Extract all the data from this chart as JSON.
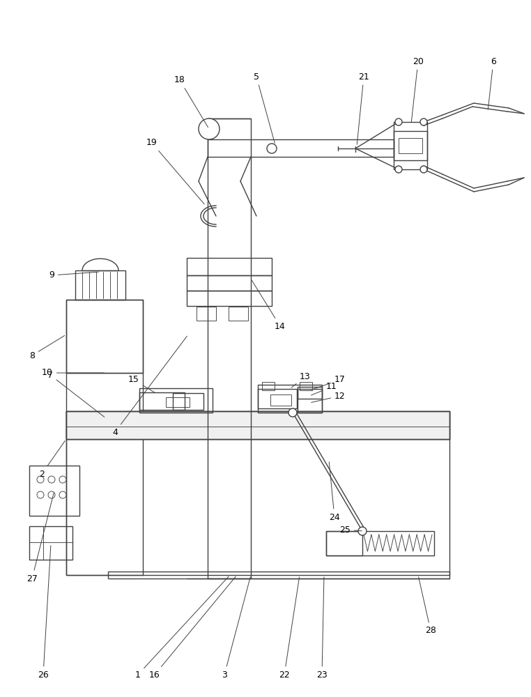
{
  "bg": "#ffffff",
  "lc": "#404040",
  "lw": 1.0,
  "tlw": 0.65,
  "fw": 7.62,
  "fh": 10.0
}
